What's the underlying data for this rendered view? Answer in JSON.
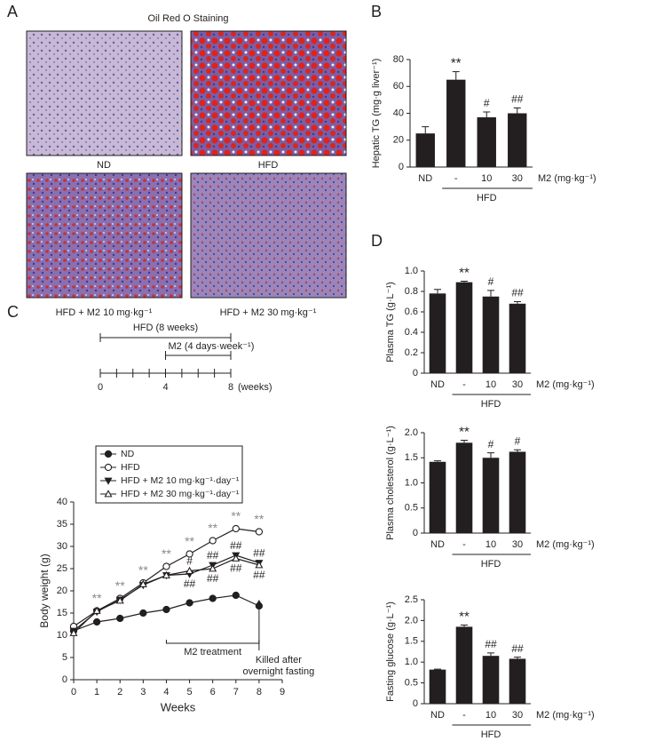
{
  "panel_labels": [
    "A",
    "B",
    "C",
    "D"
  ],
  "panel_a": {
    "title": "Oil Red O Staining",
    "labels": [
      "ND",
      "HFD",
      "HFD + M2 10 mg·kg⁻¹",
      "HFD + M2 30 mg·kg⁻¹"
    ]
  },
  "chart_data": [
    {
      "type": "bar",
      "ylabel": "Hepatic TG (mg·g liver⁻¹)",
      "categories": [
        "ND",
        "-",
        "10",
        "30"
      ],
      "values": [
        25,
        65,
        37,
        40
      ],
      "errors": [
        5,
        6,
        4,
        4
      ],
      "annotations": [
        null,
        "**",
        "#",
        "##"
      ],
      "color": "#231f20",
      "ylim": [
        0,
        80
      ],
      "yticks": [
        0,
        20,
        40,
        60,
        80
      ],
      "xlabel": "M2 (mg·kg⁻¹)",
      "group_label": "HFD"
    },
    {
      "type": "line",
      "xlabel": "Weeks",
      "ylabel": "Body weight (g)",
      "x": [
        0,
        1,
        2,
        3,
        4,
        5,
        6,
        7,
        8
      ],
      "xlim": [
        0,
        9
      ],
      "xticks": [
        0,
        1,
        2,
        3,
        4,
        5,
        6,
        7,
        8,
        9
      ],
      "ylim": [
        0,
        40
      ],
      "yticks": [
        0,
        5,
        10,
        15,
        20,
        25,
        30,
        35,
        40
      ],
      "series": [
        {
          "name": "ND",
          "color": "#231f20",
          "marker": "circle-filled",
          "values": [
            11,
            13,
            13.8,
            15,
            15.8,
            17.3,
            18.3,
            19,
            16.6
          ]
        },
        {
          "name": "HFD",
          "color": "#231f20",
          "marker": "circle-open",
          "values": [
            12,
            15.5,
            18.3,
            21.8,
            25.5,
            28.3,
            31.3,
            34,
            33.3
          ]
        },
        {
          "name": "HFD + M2 10 mg·kg⁻¹·day⁻¹",
          "color": "#231f20",
          "marker": "triangle-down-filled",
          "values": [
            11,
            15.3,
            18,
            21.3,
            23.5,
            23.8,
            25.8,
            28,
            26.3
          ]
        },
        {
          "name": "HFD + M2 30 mg·kg⁻¹·day⁻¹",
          "color": "#231f20",
          "marker": "triangle-up-open",
          "values": [
            10.5,
            15.5,
            17.8,
            21.5,
            23.5,
            24.5,
            25,
            27.3,
            25.8
          ]
        }
      ],
      "hfd_significance": [
        null,
        "**",
        "**",
        "**",
        "**",
        "**",
        "**",
        "**",
        "**"
      ],
      "m2_upper_significance": [
        null,
        null,
        null,
        null,
        null,
        "#",
        "##",
        "##",
        "##"
      ],
      "m2_lower_significance": [
        null,
        null,
        null,
        null,
        null,
        "##",
        "##",
        "##",
        "##"
      ],
      "treatment_label": "M2 treatment",
      "end_label": [
        "Killed after",
        "overnight fasting"
      ],
      "timeline": {
        "hfd_label": "HFD (8 weeks)",
        "m2_label": "M2 (4 days·week⁻¹)",
        "ticks": [
          0,
          4,
          8
        ],
        "unit": "(weeks)"
      }
    },
    {
      "type": "bar",
      "ylabel": "Plasma TG (g·L⁻¹)",
      "categories": [
        "ND",
        "-",
        "10",
        "30"
      ],
      "values": [
        0.78,
        0.89,
        0.75,
        0.68
      ],
      "errors": [
        0.04,
        0.01,
        0.06,
        0.02
      ],
      "annotations": [
        null,
        "**",
        "#",
        "##"
      ],
      "color": "#231f20",
      "ylim": [
        0,
        1
      ],
      "yticks": [
        0,
        0.2,
        0.4,
        0.6,
        0.8,
        {
          "value": 1,
          "label": "1.0"
        }
      ],
      "xlabel": "M2 (mg·kg⁻¹)",
      "group_label": "HFD"
    },
    {
      "type": "bar",
      "ylabel": "Plasma cholesterol (g·L⁻¹)",
      "categories": [
        "ND",
        "-",
        "10",
        "30"
      ],
      "values": [
        1.42,
        1.8,
        1.5,
        1.62
      ],
      "errors": [
        0.02,
        0.05,
        0.1,
        0.04
      ],
      "annotations": [
        null,
        "**",
        "#",
        "#"
      ],
      "color": "#231f20",
      "ylim": [
        0,
        2
      ],
      "yticks": [
        0,
        0.5,
        {
          "value": 1,
          "label": "1.0"
        },
        1.5,
        {
          "value": 2,
          "label": "2.0"
        }
      ],
      "xlabel": "M2 (mg·kg⁻¹)",
      "group_label": "HFD"
    },
    {
      "type": "bar",
      "ylabel": "Fasting glucose (g·L⁻¹)",
      "categories": [
        "ND",
        "-",
        "10",
        "30"
      ],
      "values": [
        0.82,
        1.85,
        1.15,
        1.08
      ],
      "errors": [
        0.01,
        0.04,
        0.07,
        0.04
      ],
      "annotations": [
        null,
        "**",
        "##",
        "##"
      ],
      "color": "#231f20",
      "ylim": [
        0,
        2.5
      ],
      "yticks": [
        0,
        0.5,
        {
          "value": 1,
          "label": "1.0"
        },
        1.5,
        {
          "value": 2,
          "label": "2.0"
        },
        2.5
      ],
      "xlabel": "M2 (mg·kg⁻¹)",
      "group_label": "HFD"
    }
  ]
}
